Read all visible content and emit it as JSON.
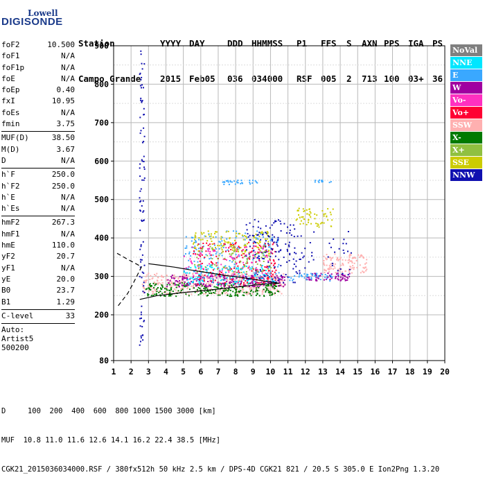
{
  "logo": {
    "line1": "Lowell",
    "line2": "DIGISONDE"
  },
  "header": {
    "row1": [
      "Station",
      "YYYY",
      "DAY",
      "DDD",
      "HHMMSS",
      "P1",
      "FFS",
      "S",
      "AXN",
      "PPS",
      "IGA",
      "PS"
    ],
    "row2": [
      "Campo Grande",
      "2015",
      "Feb05",
      "036",
      "034000",
      "RSF",
      "005",
      "2",
      "713",
      "100",
      "03+",
      "36"
    ]
  },
  "params": {
    "foF2": "10.500",
    "foF1": "N/A",
    "foF1p": "N/A",
    "foE": "N/A",
    "foEp": "0.40",
    "fxI": "10.95",
    "foEs": "N/A",
    "fmin": "3.75",
    "MUF_D": "38.50",
    "M_D": "3.67",
    "D": "N/A",
    "h_F": "250.0",
    "h_F2": "250.0",
    "h_E": "N/A",
    "h_Es": "N/A",
    "hmF2": "267.3",
    "hmF1": "N/A",
    "hmE": "110.0",
    "yF2": "20.7",
    "yF1": "N/A",
    "yE": "20.0",
    "B0": "23.7",
    "B1": "1.29",
    "C_level": "33",
    "auto_label": "Auto:",
    "artist": "Artist5",
    "code": "500200"
  },
  "labels": {
    "foF2": "foF2",
    "foF1": "foF1",
    "foF1p": "foF1p",
    "foE": "foE",
    "foEp": "foEp",
    "fxI": "fxI",
    "foEs": "foEs",
    "fmin": "fmin",
    "MUF_D": "MUF(D)",
    "M_D": "M(D)",
    "D": "D",
    "h_F": "h`F",
    "h_F2": "h`F2",
    "h_E": "h`E",
    "h_Es": "h`Es",
    "hmF2": "hmF2",
    "hmF1": "hmF1",
    "hmE": "hmE",
    "yF2": "yF2",
    "yF1": "yF1",
    "yE": "yE",
    "B0": "B0",
    "B1": "B1",
    "C_level": "C-level"
  },
  "legend": [
    {
      "name": "NoVal",
      "color": "#808080"
    },
    {
      "name": "NNE",
      "color": "#00e6ff"
    },
    {
      "name": "E",
      "color": "#3aa8ff"
    },
    {
      "name": "W",
      "color": "#a000a0"
    },
    {
      "name": "Vo-",
      "color": "#ff30c0"
    },
    {
      "name": "Vo+",
      "color": "#ff0033"
    },
    {
      "name": "SSW",
      "color": "#ffb0b0"
    },
    {
      "name": "X-",
      "color": "#007a00"
    },
    {
      "name": "X+",
      "color": "#90c040"
    },
    {
      "name": "SSE",
      "color": "#cccc00"
    },
    {
      "name": "NNW",
      "color": "#1010b0"
    }
  ],
  "footer": {
    "line1": "D     100  200  400  600  800 1000 1500 3000 [km]",
    "line2": "MUF  10.8 11.0 11.6 12.6 14.1 16.2 22.4 38.5 [MHz]",
    "line3": "CGK21_2015036034000.RSF / 380fx512h 50 kHz 2.5 km / DPS-4D CGK21 821 / 20.5 S 305.0 E Ion2Png 1.3.20"
  },
  "chart_data": {
    "type": "scatter",
    "title": "",
    "xlabel": "",
    "ylabel": "",
    "xlim": [
      1,
      20
    ],
    "ylim": [
      80,
      900
    ],
    "xticks": [
      1,
      2,
      3,
      4,
      5,
      6,
      7,
      8,
      9,
      10,
      11,
      12,
      13,
      14,
      15,
      16,
      17,
      18,
      19,
      20
    ],
    "yticks": [
      80,
      200,
      300,
      400,
      500,
      600,
      700,
      800,
      900
    ],
    "grid": true,
    "legend_position": "right",
    "profile_solid": [
      [
        2.5,
        240
      ],
      [
        3.5,
        250
      ],
      [
        5,
        258
      ],
      [
        6,
        262
      ],
      [
        7,
        267
      ],
      [
        8,
        272
      ],
      [
        9,
        277
      ],
      [
        10,
        281
      ],
      [
        10.5,
        282
      ],
      [
        9.5,
        289
      ],
      [
        8.5,
        296
      ],
      [
        7.5,
        302
      ],
      [
        6.5,
        309
      ],
      [
        5.5,
        316
      ],
      [
        4.5,
        324
      ],
      [
        3.5,
        330
      ],
      [
        3.0,
        333
      ]
    ],
    "profile_dashed": [
      [
        1.2,
        360
      ],
      [
        1.7,
        347
      ],
      [
        2.6,
        325
      ],
      [
        2.1,
        280
      ],
      [
        1.8,
        255
      ],
      [
        1.2,
        220
      ]
    ],
    "clusters": [
      {
        "dir": "SSW",
        "x": [
          2.6,
          10.8
        ],
        "y": [
          255,
          310
        ],
        "n": 420
      },
      {
        "dir": "X-",
        "x": [
          2.8,
          10.5
        ],
        "y": [
          250,
          285
        ],
        "n": 260
      },
      {
        "dir": "W",
        "x": [
          4.0,
          10.8
        ],
        "y": [
          275,
          305
        ],
        "n": 220
      },
      {
        "dir": "E",
        "x": [
          5.0,
          10.5
        ],
        "y": [
          300,
          420
        ],
        "n": 160
      },
      {
        "dir": "Vo+",
        "x": [
          5.5,
          10.3
        ],
        "y": [
          280,
          390
        ],
        "n": 200
      },
      {
        "dir": "SSE",
        "x": [
          5.5,
          10.0
        ],
        "y": [
          360,
          420
        ],
        "n": 120
      },
      {
        "dir": "NNW",
        "x": [
          8.5,
          11.5
        ],
        "y": [
          285,
          450
        ],
        "n": 140
      },
      {
        "dir": "NNE",
        "x": [
          5.0,
          10.2
        ],
        "y": [
          280,
          330
        ],
        "n": 120
      },
      {
        "dir": "Vo-",
        "x": [
          5.0,
          10.0
        ],
        "y": [
          300,
          380
        ],
        "n": 100
      },
      {
        "dir": "X+",
        "x": [
          5.5,
          10.0
        ],
        "y": [
          310,
          380
        ],
        "n": 80
      },
      {
        "dir": "E",
        "x": [
          7.2,
          9.3
        ],
        "y": [
          540,
          552
        ],
        "n": 30
      },
      {
        "dir": "SSE",
        "x": [
          11.4,
          13.6
        ],
        "y": [
          430,
          480
        ],
        "n": 60
      },
      {
        "dir": "SSW",
        "x": [
          13.0,
          15.5
        ],
        "y": [
          310,
          360
        ],
        "n": 120
      },
      {
        "dir": "W",
        "x": [
          12.0,
          14.5
        ],
        "y": [
          290,
          310
        ],
        "n": 60
      },
      {
        "dir": "NNW",
        "x": [
          11.0,
          14.6
        ],
        "y": [
          300,
          420
        ],
        "n": 50
      },
      {
        "dir": "E",
        "x": [
          12.3,
          13.5
        ],
        "y": [
          545,
          555
        ],
        "n": 12
      },
      {
        "dir": "NNW",
        "x": [
          2.45,
          2.75
        ],
        "y": [
          120,
          900
        ],
        "n": 90
      },
      {
        "dir": "E",
        "x": [
          11.0,
          13.5
        ],
        "y": [
          290,
          310
        ],
        "n": 40
      }
    ]
  }
}
